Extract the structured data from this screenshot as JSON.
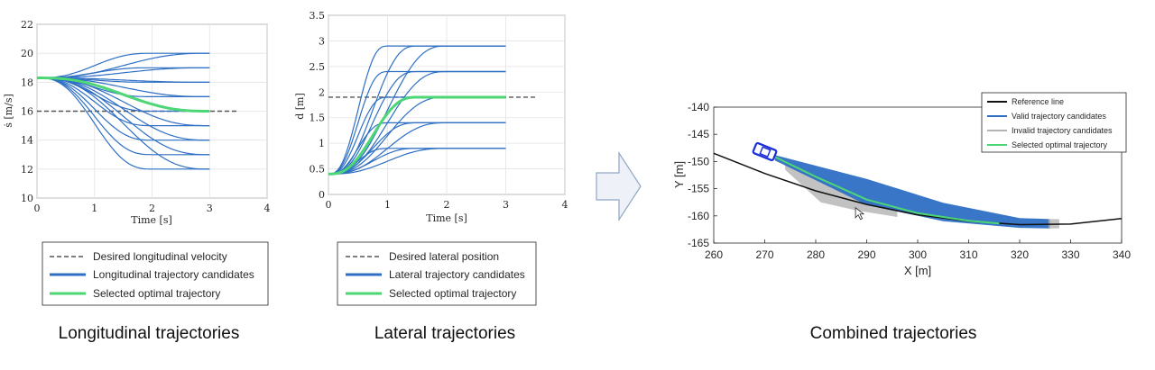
{
  "captions": {
    "left": "Longitudinal trajectories",
    "middle": "Lateral trajectories",
    "right": "Combined trajectories"
  },
  "colors": {
    "candidate": "#2e6fc4",
    "optimal": "#4cd676",
    "desired": "#555555",
    "reference": "#111111",
    "invalid": "#b3b3b3",
    "vehicle": "#1d2fd6"
  },
  "icons": {
    "arrow": "right-arrow-icon",
    "vehicle": "vehicle-icon",
    "cursor": "mouse-cursor-icon"
  },
  "chart_data": [
    {
      "type": "line",
      "xlabel": "Time [s]",
      "ylabel": "ṡ [m/s]",
      "xlim": [
        0,
        4
      ],
      "ylim": [
        10,
        22
      ],
      "xticks": [
        "0",
        "1",
        "2",
        "3",
        "4"
      ],
      "yticks": [
        "10",
        "12",
        "14",
        "16",
        "18",
        "20",
        "22"
      ],
      "grid": true,
      "start": [
        0,
        18.3
      ],
      "desired_line": {
        "value": 16,
        "x_range": [
          0,
          3.5
        ]
      },
      "candidates": [
        {
          "end_time": 3,
          "end_values": [
            20,
            19,
            18,
            17,
            16,
            15,
            14,
            13,
            12
          ]
        },
        {
          "end_time": 2,
          "end_values": [
            20,
            19,
            18,
            17,
            16,
            15,
            14,
            13,
            12
          ]
        }
      ],
      "optimal": {
        "end_time": 3,
        "end_value": 16
      },
      "legend": [
        {
          "label": "Desired longitudinal velocity",
          "style": "dashed"
        },
        {
          "label": "Longitudinal trajectory candidates",
          "style": "candidate"
        },
        {
          "label": "Selected optimal trajectory",
          "style": "optimal"
        }
      ]
    },
    {
      "type": "line",
      "xlabel": "Time [s]",
      "ylabel": "d [m]",
      "xlim": [
        0,
        4
      ],
      "ylim": [
        0,
        3.5
      ],
      "xticks": [
        "0",
        "1",
        "2",
        "3",
        "4"
      ],
      "yticks": [
        "0",
        "0.5",
        "1",
        "1.5",
        "2",
        "2.5",
        "3",
        "3.5"
      ],
      "grid": true,
      "start": [
        0,
        0.4
      ],
      "desired_line": {
        "value": 1.9,
        "x_range": [
          0,
          3.5
        ]
      },
      "candidates": [
        {
          "end_time": 2,
          "end_values": [
            2.9,
            2.4,
            1.9,
            1.4,
            0.9
          ]
        },
        {
          "end_time": 1.5,
          "end_values": [
            2.9,
            2.4,
            1.9,
            1.4,
            0.9
          ]
        },
        {
          "end_time": 1.0,
          "end_values": [
            2.9,
            2.4,
            1.9,
            1.4,
            0.9
          ]
        }
      ],
      "optimal": {
        "end_time": 1.5,
        "end_value": 1.9
      },
      "legend": [
        {
          "label": "Desired lateral position",
          "style": "dashed"
        },
        {
          "label": "Lateral trajectory candidates",
          "style": "candidate"
        },
        {
          "label": "Selected optimal trajectory",
          "style": "optimal"
        }
      ]
    },
    {
      "type": "line",
      "xlabel": "X [m]",
      "ylabel": "Y [m]",
      "xlim": [
        260,
        340
      ],
      "ylim": [
        -165,
        -140
      ],
      "xticks": [
        "260",
        "270",
        "280",
        "290",
        "300",
        "310",
        "320",
        "330",
        "340"
      ],
      "yticks": [
        "-140",
        "-145",
        "-150",
        "-155",
        "-160",
        "-165"
      ],
      "grid": false,
      "reference_line": {
        "x": [
          260,
          270,
          280,
          290,
          300,
          310,
          320,
          330,
          340
        ],
        "y": [
          -148.5,
          -152.2,
          -155.4,
          -157.9,
          -159.8,
          -161.0,
          -161.6,
          -161.5,
          -160.5
        ]
      },
      "vehicle": {
        "x": 270,
        "y": -148.2
      },
      "valid_band": {
        "x": [
          272,
          290,
          305,
          320,
          326
        ],
        "upper": [
          -148.8,
          -153.2,
          -157.6,
          -160.4,
          -160.6
        ],
        "lower": [
          -149.8,
          -158.0,
          -161.0,
          -162.2,
          -162.3
        ]
      },
      "invalid_band": {
        "x": [
          274,
          281,
          288,
          296
        ],
        "upper": [
          -150.0,
          -153.0,
          -156.5,
          -158.5
        ],
        "lower": [
          -151.5,
          -157.5,
          -159.0,
          -160.2
        ]
      },
      "optimal": {
        "x": [
          271,
          280,
          290,
          300,
          310,
          316
        ],
        "y": [
          -148.7,
          -152.8,
          -157.0,
          -159.5,
          -160.9,
          -161.4
        ]
      },
      "legend": [
        {
          "label": "Reference line",
          "style": "reference"
        },
        {
          "label": "Valid trajectory candidates",
          "style": "candidate"
        },
        {
          "label": "Invalid trajectory candidates",
          "style": "invalid"
        },
        {
          "label": "Selected optimal trajectory",
          "style": "optimal"
        }
      ]
    }
  ]
}
